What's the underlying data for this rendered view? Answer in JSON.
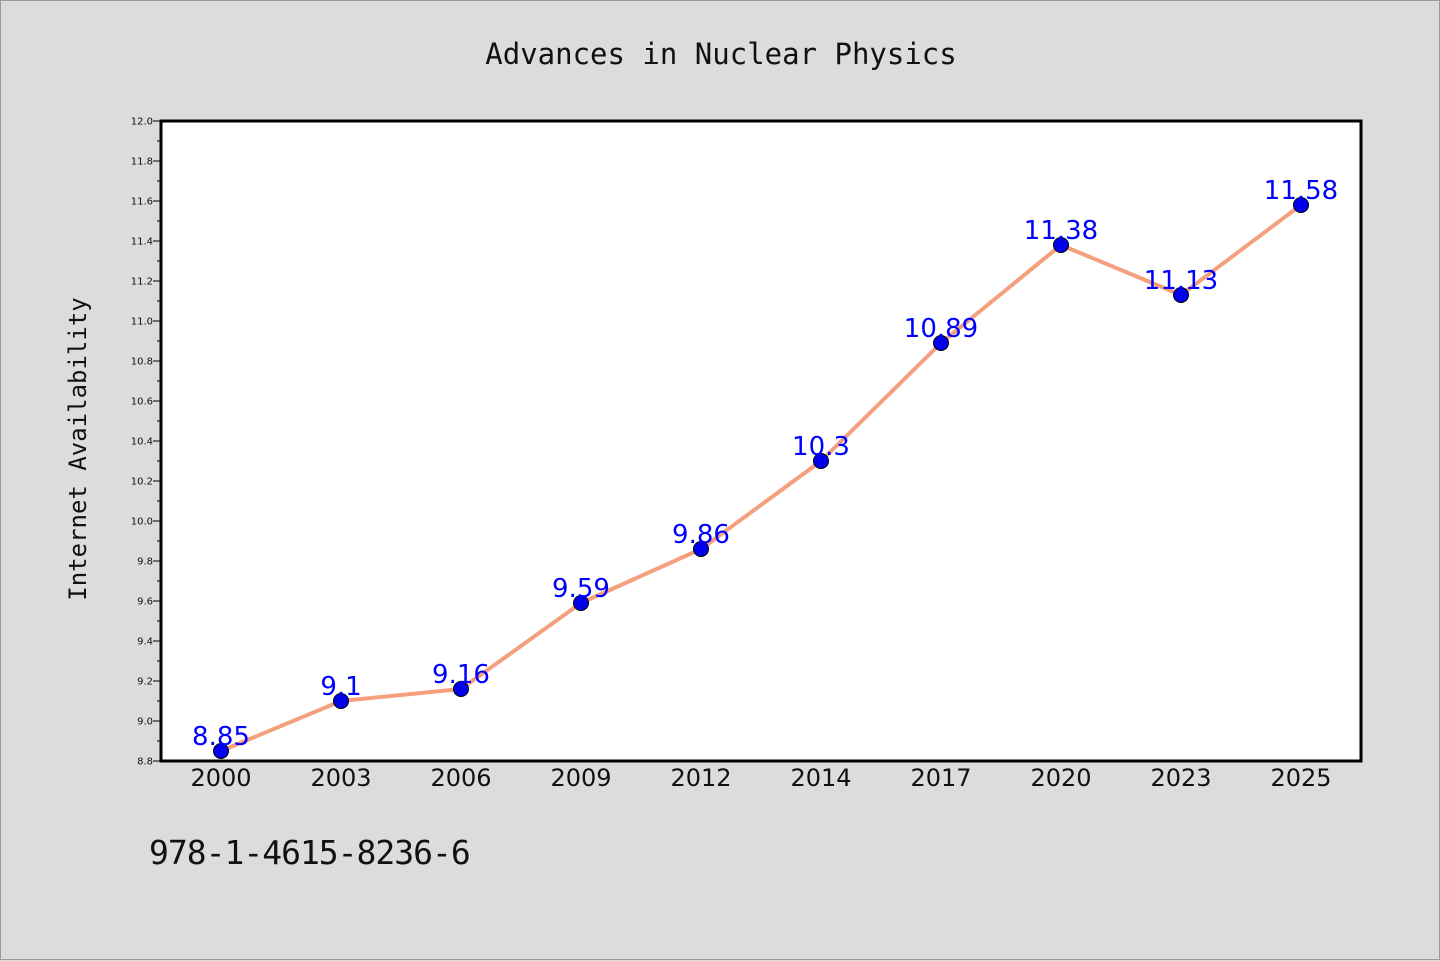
{
  "chart_data": {
    "type": "line",
    "title": "Advances in Nuclear Physics",
    "xlabel": "",
    "ylabel": "Internet Availability",
    "categories": [
      "2000",
      "2003",
      "2006",
      "2009",
      "2012",
      "2014",
      "2017",
      "2020",
      "2023",
      "2025"
    ],
    "series": [
      {
        "values": [
          8.85,
          9.1,
          9.16,
          9.59,
          9.86,
          10.3,
          10.89,
          11.38,
          11.13,
          11.58
        ],
        "labels": [
          "8.85",
          "9.1",
          "9.16",
          "9.59",
          "9.86",
          "10.3",
          "10.89",
          "11.38",
          "11.13",
          "11.58"
        ],
        "line_color": "#f4a07f",
        "marker_color": "#0000ee",
        "label_color": "#0000ff"
      }
    ],
    "ylim": [
      8.8,
      12.0
    ],
    "yticks": [
      "8.8",
      "9.0",
      "9.2",
      "9.4",
      "9.6",
      "9.8",
      "10.0",
      "10.2",
      "10.4",
      "10.6",
      "10.8",
      "11.0",
      "11.2",
      "11.4",
      "11.6",
      "11.8",
      "12.0"
    ],
    "grid": false,
    "legend": "none"
  },
  "footnote": "978-1-4615-8236-6",
  "colors": {
    "background": "#dcdcdc",
    "plot_background": "#ffffff",
    "axis": "#000000"
  }
}
